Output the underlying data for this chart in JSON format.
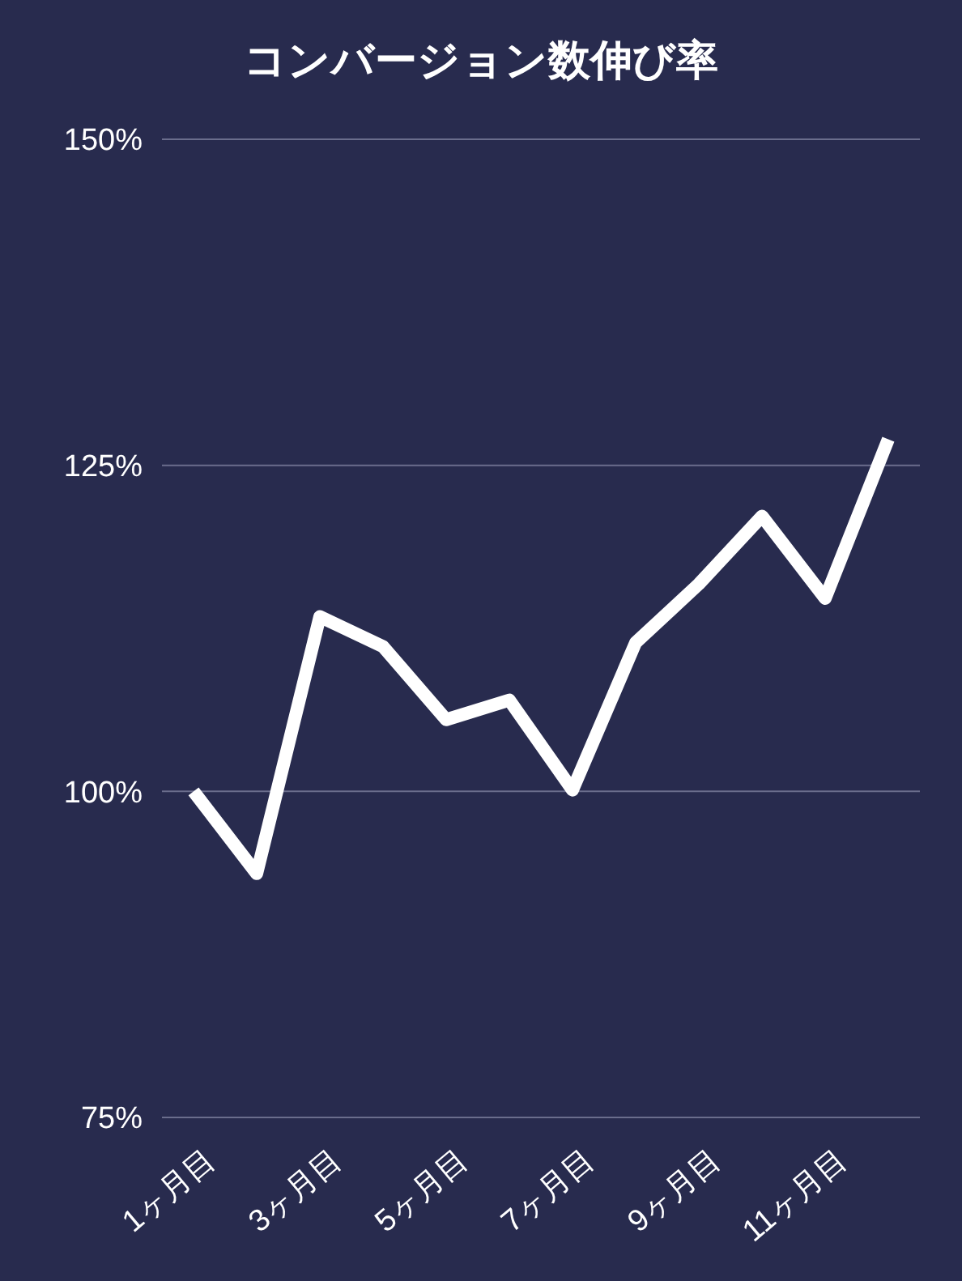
{
  "chart_data": {
    "type": "line",
    "title": "コンバージョン数伸び率",
    "categories": [
      "1ヶ月目",
      null,
      "3ヶ月目",
      null,
      "5ヶ月目",
      null,
      "7ヶ月目",
      null,
      "9ヶ月目",
      null,
      "11ヶ月目",
      null
    ],
    "series": [
      {
        "color": "#ffffff",
        "values": [
          100,
          93.7,
          113.4,
          111.1,
          105.5,
          107.0,
          100.1,
          111.4,
          115.9,
          121.1,
          114.8,
          127.0
        ]
      }
    ],
    "ylim": [
      75,
      150
    ],
    "yticks": [
      {
        "value": 75,
        "label": "75%"
      },
      {
        "value": 100,
        "label": "100%"
      },
      {
        "value": 125,
        "label": "125%"
      },
      {
        "value": 150,
        "label": "150%"
      }
    ],
    "grid": "y",
    "marker": "none",
    "line_style": "solid"
  }
}
